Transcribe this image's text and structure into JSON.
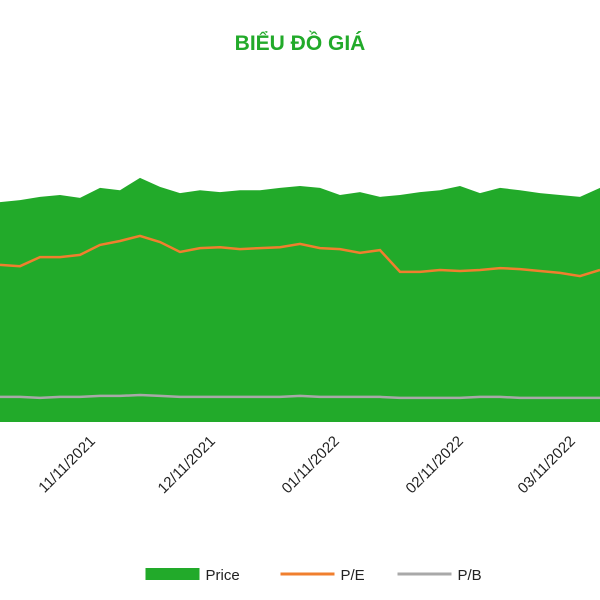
{
  "chart_data": {
    "type": "area-line",
    "title": "BIỂU ĐỒ GIÁ",
    "x": [
      "10/18/2021",
      "10/23/2021",
      "10/28/2021",
      "11/02/2021",
      "11/07/2021",
      "11/12/2021",
      "11/17/2021",
      "11/22/2021",
      "11/27/2021",
      "12/02/2021",
      "12/07/2021",
      "12/12/2021",
      "12/17/2021",
      "12/22/2021",
      "12/27/2021",
      "01/01/2022",
      "01/06/2022",
      "01/11/2022",
      "01/16/2022",
      "01/21/2022",
      "01/26/2022",
      "01/31/2022",
      "02/05/2022",
      "02/10/2022",
      "02/15/2022",
      "02/20/2022",
      "02/25/2022",
      "03/02/2022",
      "03/07/2022",
      "03/12/2022",
      "03/17/2022"
    ],
    "xlim": [
      "10/18/2021",
      "03/17/2022"
    ],
    "xticks": [
      "11/11/2021",
      "12/11/2021",
      "01/11/2022",
      "02/11/2022",
      "03/11/2022"
    ],
    "ylim": [
      0,
      100
    ],
    "series": [
      {
        "name": "Price",
        "kind": "area",
        "color": "#22aa2a",
        "values": [
          68.3,
          68.9,
          69.9,
          70.5,
          69.6,
          72.7,
          72.0,
          75.8,
          73.0,
          71.1,
          72.0,
          71.4,
          72.0,
          72.0,
          72.7,
          73.3,
          72.7,
          70.5,
          71.4,
          69.9,
          70.5,
          71.4,
          72.0,
          73.3,
          71.1,
          72.7,
          72.0,
          71.1,
          70.5,
          69.9,
          72.7
        ]
      },
      {
        "name": "P/E",
        "kind": "line",
        "color": "#f07f2e",
        "values": [
          48.8,
          48.4,
          51.2,
          51.2,
          51.9,
          55.0,
          56.2,
          57.8,
          55.9,
          52.8,
          54.0,
          54.3,
          53.7,
          54.0,
          54.3,
          55.3,
          54.0,
          53.7,
          52.5,
          53.4,
          46.6,
          46.6,
          47.2,
          46.9,
          47.2,
          47.8,
          47.5,
          46.9,
          46.3,
          45.3,
          47.2
        ]
      },
      {
        "name": "P/B",
        "kind": "line",
        "color": "#a9a9a9",
        "values": [
          7.8,
          7.8,
          7.5,
          7.8,
          7.8,
          8.1,
          8.1,
          8.4,
          8.1,
          7.8,
          7.8,
          7.8,
          7.8,
          7.8,
          7.8,
          8.1,
          7.8,
          7.8,
          7.8,
          7.8,
          7.5,
          7.5,
          7.5,
          7.5,
          7.8,
          7.8,
          7.5,
          7.5,
          7.5,
          7.5,
          7.5
        ]
      }
    ]
  }
}
